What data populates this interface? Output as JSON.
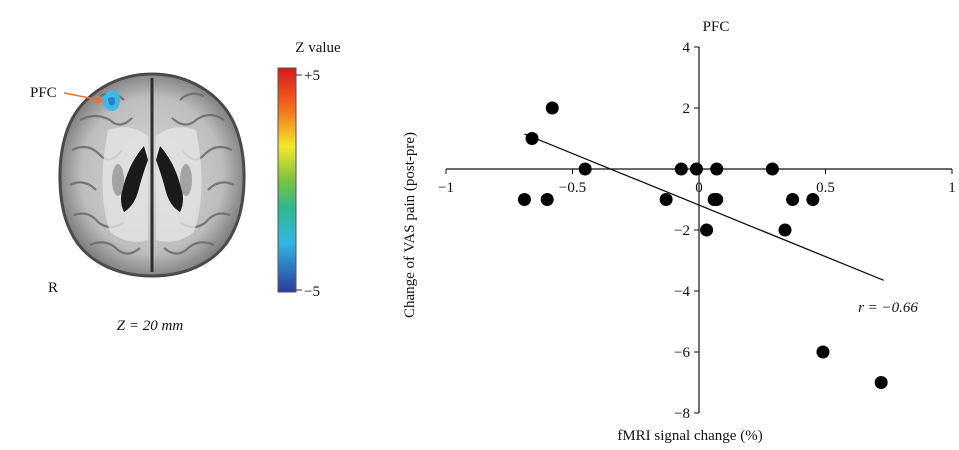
{
  "brain_panel": {
    "region_label": "PFC",
    "hemisphere_label": "R",
    "slice_label": "Z = 20 mm",
    "colorbar": {
      "title": "Z value",
      "max_label": "+5",
      "min_label": "−5"
    }
  },
  "chart_data": {
    "type": "scatter",
    "title": "PFC",
    "xlabel": "fMRI signal change (%)",
    "ylabel": "Change of VAS pain (post-pre)",
    "xlim": [
      -1,
      1
    ],
    "ylim": [
      -8,
      4
    ],
    "x_ticks": [
      -1,
      -0.5,
      0,
      0.5,
      1
    ],
    "x_tick_labels": [
      "−1",
      "−0.5",
      "0",
      "0.5",
      "1"
    ],
    "y_ticks": [
      4,
      2,
      -2,
      -4,
      -6,
      -8
    ],
    "y_tick_labels": [
      "4",
      "2",
      "−2",
      "−4",
      "−6",
      "−8"
    ],
    "points": [
      {
        "x": -0.58,
        "y": 2
      },
      {
        "x": -0.66,
        "y": 1
      },
      {
        "x": -0.45,
        "y": 0
      },
      {
        "x": -0.07,
        "y": 0
      },
      {
        "x": -0.01,
        "y": 0
      },
      {
        "x": 0.07,
        "y": 0
      },
      {
        "x": 0.29,
        "y": 0
      },
      {
        "x": -0.69,
        "y": -1
      },
      {
        "x": -0.6,
        "y": -1
      },
      {
        "x": -0.13,
        "y": -1
      },
      {
        "x": 0.06,
        "y": -1
      },
      {
        "x": 0.07,
        "y": -1
      },
      {
        "x": 0.37,
        "y": -1
      },
      {
        "x": 0.45,
        "y": -1
      },
      {
        "x": 0.03,
        "y": -2
      },
      {
        "x": 0.34,
        "y": -2
      },
      {
        "x": 0.49,
        "y": -6
      },
      {
        "x": 0.72,
        "y": -7
      }
    ],
    "trendline": {
      "x": [
        -0.69,
        0.73
      ],
      "y": [
        1.15,
        -3.65
      ]
    },
    "annotation": "r = −0.66",
    "grid": false,
    "marker_color": "#000000"
  }
}
